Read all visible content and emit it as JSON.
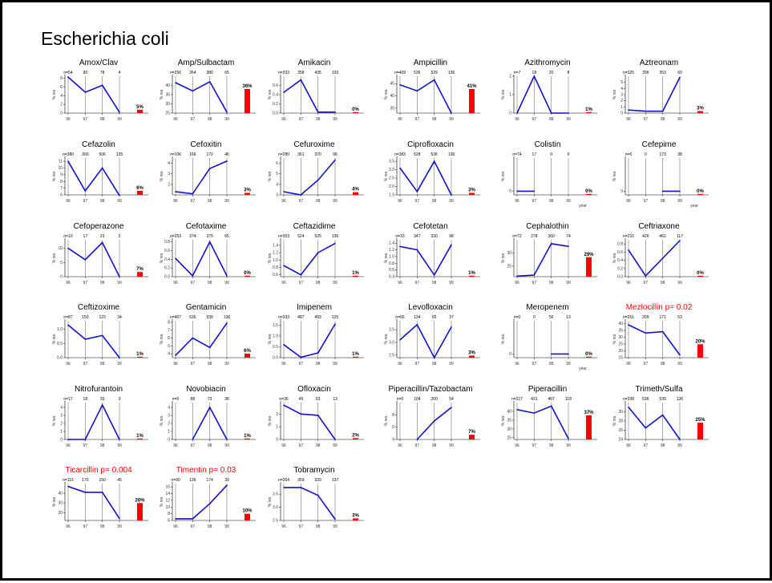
{
  "title": "Escherichia coli",
  "colors": {
    "line": "#1111cc",
    "bar": "#ff0000",
    "title_sig": "#ff0000",
    "axis": "#000000",
    "stem": "#888888"
  },
  "chart_data": [
    {
      "type": "line",
      "title": "Amox/Clav",
      "x": [
        "96",
        "97",
        "98",
        "99"
      ],
      "n": [
        "n=54",
        "90",
        "78",
        "4"
      ],
      "values": [
        8.3,
        4.8,
        6.4,
        0.2
      ],
      "ylim": [
        0,
        8.5
      ],
      "yticks": [
        "0",
        "2",
        "4",
        "6",
        "8"
      ],
      "ylabel": "% res",
      "bar_label": "5%",
      "bar_value": 0.05
    },
    {
      "type": "line",
      "title": "Amp/Sulbactam",
      "x": [
        "96",
        "97",
        "98",
        "99"
      ],
      "n": [
        "n=256",
        "264",
        "380",
        "65"
      ],
      "values": [
        41.5,
        37,
        42,
        25.5
      ],
      "ylim": [
        25,
        45
      ],
      "yticks": [
        "25",
        "30",
        "35",
        "40"
      ],
      "ylabel": "% res",
      "bar_label": "36%",
      "bar_value": 0.36
    },
    {
      "type": "line",
      "title": "Amikacin",
      "x": [
        "96",
        "97",
        "98",
        "99"
      ],
      "n": [
        "n=333",
        "358",
        "435",
        "133"
      ],
      "values": [
        0.45,
        0.72,
        0.02,
        0.02
      ],
      "ylim": [
        0,
        0.8
      ],
      "yticks": [
        "0.0",
        "0.2",
        "0.4",
        "0.6"
      ],
      "ylabel": "% res",
      "bar_label": "0%",
      "bar_value": 0.0
    },
    {
      "type": "line",
      "title": "Ampicillin",
      "x": [
        "96",
        "97",
        "98",
        "99"
      ],
      "n": [
        "n=409",
        "536",
        "529",
        "136"
      ],
      "values": [
        44.5,
        42,
        46.5,
        33
      ],
      "ylim": [
        33,
        48
      ],
      "yticks": [
        "35",
        "40",
        "45"
      ],
      "ylabel": "% res",
      "bar_label": "41%",
      "bar_value": 0.41
    },
    {
      "type": "line",
      "title": "Azithromycin",
      "x": [
        "96",
        "97",
        "98",
        "99"
      ],
      "n": [
        "n=7",
        "18",
        "20",
        "8"
      ],
      "values": [
        0,
        2,
        0,
        0
      ],
      "ylim": [
        0,
        2
      ],
      "yticks": [
        "0",
        "1",
        "2"
      ],
      "ylabel": "% res",
      "bar_label": "1%",
      "bar_value": 0.01
    },
    {
      "type": "line",
      "title": "Aztreonam",
      "x": [
        "96",
        "97",
        "98",
        "99"
      ],
      "n": [
        "n=325",
        "396",
        "353",
        "60"
      ],
      "values": [
        0.5,
        0.3,
        0.3,
        5.8
      ],
      "ylim": [
        0,
        6
      ],
      "yticks": [
        "0",
        "1",
        "2",
        "3",
        "4",
        "5"
      ],
      "ylabel": "% res",
      "bar_label": "3%",
      "bar_value": 0.03
    },
    {
      "type": "line",
      "title": "Cefazolin",
      "x": [
        "96",
        "97",
        "98",
        "99"
      ],
      "n": [
        "n=380",
        "300",
        "506",
        "135"
      ],
      "values": [
        11,
        6.6,
        10,
        5.9
      ],
      "ylim": [
        6,
        11.5
      ],
      "yticks": [
        "6",
        "7",
        "8",
        "9",
        "10",
        "11"
      ],
      "ylabel": "% res",
      "bar_label": "6%",
      "bar_value": 0.06
    },
    {
      "type": "line",
      "title": "Cefoxitin",
      "x": [
        "96",
        "97",
        "98",
        "99"
      ],
      "n": [
        "n=106",
        "166",
        "172",
        "46"
      ],
      "values": [
        1.3,
        1.1,
        3.5,
        4.2
      ],
      "ylim": [
        1,
        4.5
      ],
      "yticks": [
        "2",
        "3",
        "4"
      ],
      "ylabel": "% res",
      "bar_label": "3%",
      "bar_value": 0.03
    },
    {
      "type": "line",
      "title": "Cefuroxime",
      "x": [
        "96",
        "97",
        "98",
        "99"
      ],
      "n": [
        "n=280",
        "361",
        "370",
        "96"
      ],
      "values": [
        3.3,
        3,
        4.4,
        6.3
      ],
      "ylim": [
        3,
        6.5
      ],
      "yticks": [
        "3",
        "4",
        "5",
        "6"
      ],
      "ylabel": "% res",
      "bar_label": "4%",
      "bar_value": 0.04
    },
    {
      "type": "line",
      "title": "Ciprofloxacin",
      "x": [
        "96",
        "97",
        "98",
        "99"
      ],
      "n": [
        "n=383",
        "528",
        "536",
        "136"
      ],
      "values": [
        3.1,
        1.7,
        3.5,
        1.5
      ],
      "ylim": [
        1.5,
        3.7
      ],
      "yticks": [
        "1.5",
        "2.0",
        "2.5",
        "3.0",
        "3.5"
      ],
      "ylabel": "% res",
      "bar_label": "3%",
      "bar_value": 0.03
    },
    {
      "type": "line",
      "title": "Colistin",
      "x": [
        "96",
        "97",
        "98",
        "99"
      ],
      "n": [
        "n=74",
        "17",
        "0",
        "0"
      ],
      "values": [
        0,
        0,
        null,
        null
      ],
      "ylim": [
        -1,
        9
      ],
      "yticks": [
        "0"
      ],
      "ylabel": "% res",
      "xlabel": "year",
      "bar_label": "0%",
      "bar_value": 0.0
    },
    {
      "type": "line",
      "title": "Cefepime",
      "x": [
        "96",
        "97",
        "98",
        "99"
      ],
      "n": [
        "n=0",
        "0",
        "173",
        "38"
      ],
      "values": [
        null,
        null,
        0,
        0
      ],
      "ylim": [
        -1,
        9
      ],
      "yticks": [
        "0"
      ],
      "ylabel": "% res",
      "xlabel": "year",
      "bar_label": "0%",
      "bar_value": 0.0
    },
    {
      "type": "line",
      "title": "Cefoperazone",
      "x": [
        "96",
        "97",
        "98",
        "99"
      ],
      "n": [
        "n=10",
        "17",
        "23",
        "2"
      ],
      "values": [
        10,
        6,
        12,
        0
      ],
      "ylim": [
        0,
        13
      ],
      "yticks": [
        "0",
        "5",
        "10"
      ],
      "ylabel": "% res",
      "bar_label": "7%",
      "bar_value": 0.07
    },
    {
      "type": "line",
      "title": "Cefotaxime",
      "x": [
        "96",
        "97",
        "98",
        "99"
      ],
      "n": [
        "n=253",
        "374",
        "379",
        "65"
      ],
      "values": [
        0.42,
        0.02,
        0.8,
        0.02
      ],
      "ylim": [
        0,
        0.85
      ],
      "yticks": [
        "0.0",
        "0.2",
        "0.4",
        "0.6",
        "0.8"
      ],
      "ylabel": "% res",
      "bar_label": "0%",
      "bar_value": 0.0
    },
    {
      "type": "line",
      "title": "Ceftazidime",
      "x": [
        "96",
        "97",
        "98",
        "99"
      ],
      "n": [
        "n=353",
        "524",
        "525",
        "136"
      ],
      "values": [
        0.85,
        0.6,
        1.2,
        1.45
      ],
      "ylim": [
        0.55,
        1.55
      ],
      "yticks": [
        "0.6",
        "0.8",
        "1.0",
        "1.2",
        "1.4"
      ],
      "ylabel": "% res",
      "bar_label": "1%",
      "bar_value": 0.01
    },
    {
      "type": "line",
      "title": "Cefotetan",
      "x": [
        "96",
        "97",
        "98",
        "99"
      ],
      "n": [
        "n=33",
        "347",
        "330",
        "98"
      ],
      "values": [
        1.3,
        1.2,
        0.45,
        1.35
      ],
      "ylim": [
        0.4,
        1.5
      ],
      "yticks": [
        "0.4",
        "0.6",
        "0.8",
        "1.0",
        "1.2",
        "1.4"
      ],
      "ylabel": "% res",
      "bar_label": "1%",
      "bar_value": 0.01
    },
    {
      "type": "line",
      "title": "Cephalothin",
      "x": [
        "96",
        "97",
        "98",
        "99"
      ],
      "n": [
        "n=72",
        "278",
        "360",
        "74"
      ],
      "values": [
        21.2,
        21.6,
        33.5,
        32.5
      ],
      "ylim": [
        21,
        35
      ],
      "yticks": [
        "25",
        "30"
      ],
      "ylabel": "% res",
      "bar_label": "29%",
      "bar_value": 0.29
    },
    {
      "type": "line",
      "title": "Ceftriaxone",
      "x": [
        "96",
        "97",
        "98",
        "99"
      ],
      "n": [
        "n=210",
        "426",
        "462",
        "117"
      ],
      "values": [
        0.65,
        0.02,
        0.45,
        0.88
      ],
      "ylim": [
        0,
        0.9
      ],
      "yticks": [
        "0.0",
        "0.2",
        "0.4",
        "0.6",
        "0.8"
      ],
      "ylabel": "% res",
      "bar_label": "0%",
      "bar_value": 0.0
    },
    {
      "type": "line",
      "title": "Ceftizoxime",
      "x": [
        "96",
        "97",
        "98",
        "99"
      ],
      "n": [
        "n=87",
        "150",
        "123",
        "34"
      ],
      "values": [
        1.15,
        0.65,
        0.78,
        0
      ],
      "ylim": [
        0,
        1.3
      ],
      "yticks": [
        "0.0",
        "0.5",
        "1.0"
      ],
      "ylabel": "% res",
      "bar_label": "1%",
      "bar_value": 0.01
    },
    {
      "type": "line",
      "title": "Gentamicin",
      "x": [
        "96",
        "97",
        "98",
        "99"
      ],
      "n": [
        "n=407",
        "536",
        "539",
        "136"
      ],
      "values": [
        3.8,
        6,
        4.8,
        7.9
      ],
      "ylim": [
        3.5,
        8.2
      ],
      "yticks": [
        "4",
        "5",
        "6",
        "7",
        "8"
      ],
      "ylabel": "% res",
      "bar_label": "6%",
      "bar_value": 0.06
    },
    {
      "type": "line",
      "title": "Imipenem",
      "x": [
        "96",
        "97",
        "98",
        "99"
      ],
      "n": [
        "n=333",
        "487",
        "493",
        "125"
      ],
      "values": [
        0.6,
        0.02,
        0.22,
        1.55
      ],
      "ylim": [
        0,
        1.7
      ],
      "yticks": [
        "0.0",
        "0.5",
        "1.0",
        "1.5"
      ],
      "ylabel": "% res",
      "bar_label": "1%",
      "bar_value": 0.01
    },
    {
      "type": "line",
      "title": "Levofloxacin",
      "x": [
        "96",
        "97",
        "98",
        "99"
      ],
      "n": [
        "n=66",
        "134",
        "65",
        "37"
      ],
      "values": [
        3.1,
        3.7,
        2.4,
        3.6
      ],
      "ylim": [
        2.4,
        3.85
      ],
      "yticks": [
        "2.5",
        "3.0",
        "3.5"
      ],
      "ylabel": "% res",
      "bar_label": "3%",
      "bar_value": 0.03
    },
    {
      "type": "line",
      "title": "Meropenem",
      "x": [
        "96",
        "97",
        "98",
        "99"
      ],
      "n": [
        "n=0",
        "0",
        "56",
        "13"
      ],
      "values": [
        null,
        null,
        0,
        0
      ],
      "ylim": [
        -1,
        9
      ],
      "yticks": [
        "0"
      ],
      "ylabel": "% res",
      "xlabel": "year",
      "bar_label": "0%",
      "bar_value": 0.0
    },
    {
      "type": "line",
      "title": "Mezlocillin  p= 0.02",
      "x": [
        "96",
        "97",
        "98",
        "99"
      ],
      "n": [
        "n=251",
        "209",
        "171",
        "53"
      ],
      "values": [
        39,
        33,
        34,
        17
      ],
      "ylim": [
        15,
        42
      ],
      "yticks": [
        "15",
        "20",
        "25",
        "30",
        "35",
        "40"
      ],
      "ylabel": "% res",
      "bar_label": "20%",
      "bar_value": 0.2,
      "significant": true
    },
    {
      "type": "line",
      "title": "Nitrofurantoin",
      "x": [
        "96",
        "97",
        "98",
        "99"
      ],
      "n": [
        "n=17",
        "18",
        "33",
        "3"
      ],
      "values": [
        0,
        0,
        4.3,
        0
      ],
      "ylim": [
        0,
        4.6
      ],
      "yticks": [
        "0",
        "1",
        "2",
        "3",
        "4"
      ],
      "ylabel": "% res",
      "bar_label": "1%",
      "bar_value": 0.01
    },
    {
      "type": "line",
      "title": "Novobiacin",
      "x": [
        "96",
        "97",
        "98",
        "99"
      ],
      "n": [
        "n=0",
        "88",
        "73",
        "38"
      ],
      "values": [
        null,
        0,
        4,
        0
      ],
      "ylim": [
        0,
        4.6
      ],
      "yticks": [
        "0",
        "1",
        "2",
        "3",
        "4"
      ],
      "ylabel": "% res",
      "bar_label": "1%",
      "bar_value": 0.01
    },
    {
      "type": "line",
      "title": "Ofloxacin",
      "x": [
        "96",
        "97",
        "98",
        "99"
      ],
      "n": [
        "n=36",
        "49",
        "53",
        "13"
      ],
      "values": [
        2.7,
        2,
        1.9,
        0
      ],
      "ylim": [
        0,
        2.9
      ],
      "yticks": [
        "0",
        "1",
        "2"
      ],
      "ylabel": "% res",
      "bar_label": "2%",
      "bar_value": 0.02
    },
    {
      "type": "line",
      "title": "Piperacillin/Tazobactam",
      "x": [
        "96",
        "97",
        "98",
        "99"
      ],
      "n": [
        "n=0",
        "104",
        "200",
        "54"
      ],
      "values": [
        null,
        4,
        7,
        9.2
      ],
      "ylim": [
        4,
        10
      ],
      "yticks": [
        "4",
        "6",
        "8"
      ],
      "ylabel": "% res",
      "bar_label": "7%",
      "bar_value": 0.07
    },
    {
      "type": "line",
      "title": "Piperacillin",
      "x": [
        "96",
        "97",
        "98",
        "99"
      ],
      "n": [
        "n=317",
        "431",
        "467",
        "118"
      ],
      "values": [
        41,
        39,
        43,
        24.5
      ],
      "ylim": [
        24,
        45
      ],
      "yticks": [
        "25",
        "30",
        "35",
        "40"
      ],
      "ylabel": "% res",
      "bar_label": "37%",
      "bar_value": 0.37
    },
    {
      "type": "line",
      "title": "Trimeth/Sulfa",
      "x": [
        "96",
        "97",
        "98",
        "99"
      ],
      "n": [
        "n=338",
        "536",
        "539",
        "136"
      ],
      "values": [
        31,
        26.5,
        29.3,
        24
      ],
      "ylim": [
        24,
        32
      ],
      "yticks": [
        "24",
        "26",
        "28",
        "30"
      ],
      "ylabel": "% res",
      "bar_label": "25%",
      "bar_value": 0.25
    },
    {
      "type": "line",
      "title": "Ticarcillin  p= 0.004",
      "x": [
        "96",
        "97",
        "98",
        "99"
      ],
      "n": [
        "n=115",
        "170",
        "150",
        "45"
      ],
      "values": [
        47,
        41,
        41,
        14
      ],
      "ylim": [
        12,
        50
      ],
      "yticks": [
        "20",
        "30",
        "40"
      ],
      "ylabel": "% res",
      "bar_label": "26%",
      "bar_value": 0.26,
      "significant": true
    },
    {
      "type": "line",
      "title": "Timentin  p= 0.03",
      "x": [
        "96",
        "97",
        "98",
        "99"
      ],
      "n": [
        "n=90",
        "136",
        "174",
        "39"
      ],
      "values": [
        6.5,
        6.5,
        11,
        16.5
      ],
      "ylim": [
        6,
        17
      ],
      "yticks": [
        "6",
        "8",
        "10",
        "12",
        "14",
        "16"
      ],
      "ylabel": "% res",
      "bar_label": "10%",
      "bar_value": 0.1,
      "significant": true
    },
    {
      "type": "line",
      "title": "Tobramycin",
      "x": [
        "96",
        "97",
        "98",
        "99"
      ],
      "n": [
        "n=264",
        "359",
        "339",
        "137"
      ],
      "values": [
        3.75,
        3.75,
        3.45,
        2.55
      ],
      "ylim": [
        2.5,
        3.9
      ],
      "yticks": [
        "2.5",
        "3.0",
        "3.5"
      ],
      "ylabel": "% res",
      "bar_label": "3%",
      "bar_value": 0.03
    }
  ]
}
